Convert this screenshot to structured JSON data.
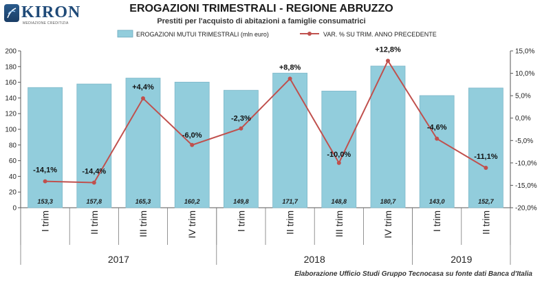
{
  "logo": {
    "name": "KIRON",
    "tagline": "MEDIAZIONE CREDITIZIA"
  },
  "header": {
    "title": "EROGAZIONI TRIMESTRALI - REGIONE ABRUZZO",
    "subtitle": "Prestiti per l'acquisto di abitazioni a famiglie consumatrici"
  },
  "footer": {
    "source": "Elaborazione Ufficio Studi Gruppo Tecnocasa su fonte dati Banca d'Italia"
  },
  "chart_data": {
    "type": "bar",
    "categories": [
      "I trim",
      "II trim",
      "III trim",
      "IV trim",
      "I trim",
      "II trim",
      "III trim",
      "IV trim",
      "I trim",
      "II trim"
    ],
    "years": [
      {
        "label": "2017",
        "start": 0,
        "end": 3
      },
      {
        "label": "2018",
        "start": 4,
        "end": 7
      },
      {
        "label": "2019",
        "start": 8,
        "end": 9
      }
    ],
    "series": [
      {
        "name": "EROGAZIONI MUTUI TRIMESTRALI (mln euro)",
        "type": "bar",
        "axis": "left",
        "color": "#92cddc",
        "values": [
          153.3,
          157.8,
          165.3,
          160.2,
          149.8,
          171.7,
          148.8,
          180.7,
          143.0,
          152.7
        ],
        "labels": [
          "153,3",
          "157,8",
          "165,3",
          "160,2",
          "149,8",
          "171,7",
          "148,8",
          "180,7",
          "143,0",
          "152,7"
        ]
      },
      {
        "name": "VAR. % SU TRIM. ANNO PRECEDENTE",
        "type": "line",
        "axis": "right",
        "color": "#c0504d",
        "values": [
          -14.1,
          -14.4,
          4.4,
          -6.0,
          -2.3,
          8.8,
          -10.0,
          12.8,
          -4.6,
          -11.1
        ],
        "labels": [
          "-14,1%",
          "-14,4%",
          "+4,4%",
          "-6,0%",
          "-2,3%",
          "+8,8%",
          "-10,0%",
          "+12,8%",
          "-4,6%",
          "-11,1%"
        ]
      }
    ],
    "y_left": {
      "min": 0,
      "max": 200,
      "step": 20,
      "ticks": [
        "0",
        "20",
        "40",
        "60",
        "80",
        "100",
        "120",
        "140",
        "160",
        "180",
        "200"
      ]
    },
    "y_right": {
      "min": -20,
      "max": 15,
      "step": 5,
      "ticks": [
        "-20,0%",
        "-15,0%",
        "-10,0%",
        "-5,0%",
        "0,0%",
        "5,0%",
        "10,0%",
        "15,0%"
      ]
    },
    "legend_position": "top",
    "grid": false
  }
}
